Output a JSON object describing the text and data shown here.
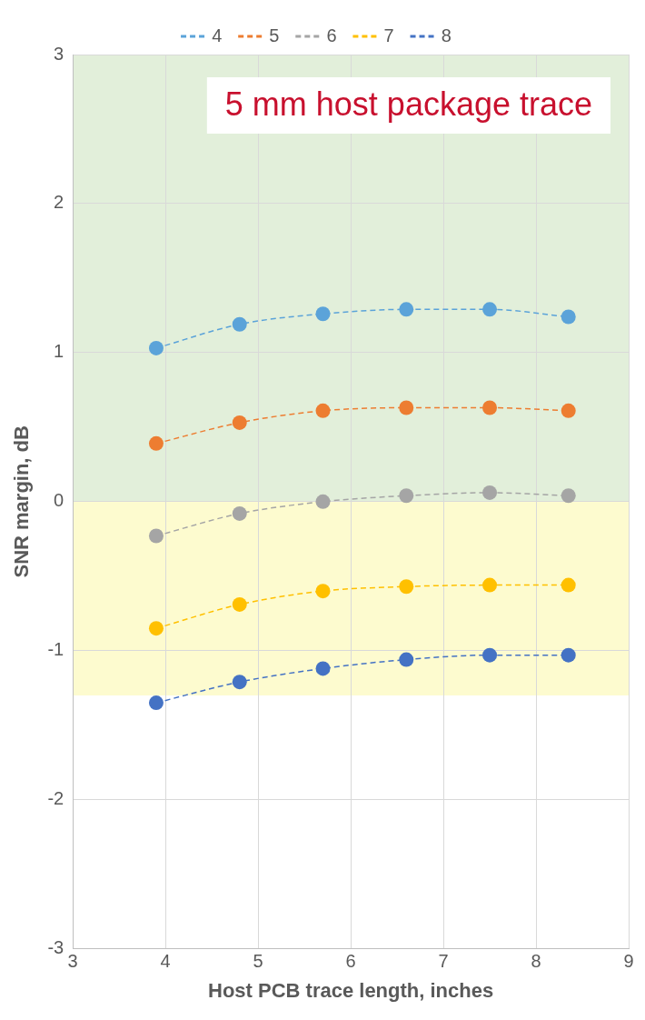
{
  "chart_data": {
    "type": "line",
    "xlabel": "Host PCB trace length, inches",
    "ylabel": "SNR margin, dB",
    "annotations": [
      "5 mm host package trace"
    ],
    "x": [
      3.9,
      4.8,
      5.7,
      6.6,
      7.5,
      8.35
    ],
    "series": [
      {
        "name": "4",
        "color": "#5ba3d9",
        "values": [
          1.03,
          1.19,
          1.26,
          1.29,
          1.29,
          1.24
        ]
      },
      {
        "name": "5",
        "color": "#ed7d31",
        "values": [
          0.39,
          0.53,
          0.61,
          0.63,
          0.63,
          0.61
        ]
      },
      {
        "name": "6",
        "color": "#a5a5a5",
        "values": [
          -0.23,
          -0.08,
          0,
          0.04,
          0.06,
          0.04
        ]
      },
      {
        "name": "7",
        "color": "#ffc000",
        "values": [
          -0.85,
          -0.69,
          -0.6,
          -0.57,
          -0.56,
          -0.56
        ]
      },
      {
        "name": "8",
        "color": "#4472c4",
        "values": [
          -1.35,
          -1.21,
          -1.12,
          -1.06,
          -1.03,
          -1.03
        ]
      }
    ],
    "xlim": [
      3,
      9
    ],
    "xticks": [
      3,
      4,
      5,
      6,
      7,
      8,
      9
    ],
    "ylim": [
      -3,
      3
    ],
    "yticks": [
      -3,
      -2,
      -1,
      0,
      1,
      2,
      3
    ],
    "bands": [
      {
        "axis": "y",
        "from": 0,
        "to": 3,
        "color": "#e2efda"
      },
      {
        "axis": "y",
        "from": -1.3,
        "to": 0,
        "color": "#fdfbcf"
      }
    ],
    "grid": true,
    "legend": "top",
    "marker": "circle",
    "line_style": "dashed"
  }
}
